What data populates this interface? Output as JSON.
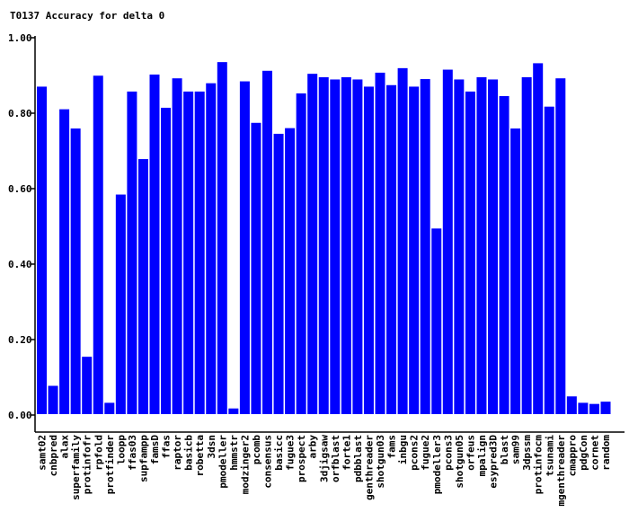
{
  "chart_data": {
    "type": "bar",
    "title": "T0137 Accuracy for delta 0",
    "xlabel": "",
    "ylabel": "",
    "ylim": [
      0,
      1
    ],
    "yticks": [
      "0.00",
      "0.20",
      "0.40",
      "0.60",
      "0.80",
      "1.00"
    ],
    "bar_color": "#0000ff",
    "categories": [
      "samt02",
      "cnbpred",
      "alax",
      "superfamily",
      "protinfofr",
      "rpfold",
      "protfinder",
      "loopp",
      "ffas03",
      "supfampp",
      "famsD",
      "ffas",
      "raptor",
      "basicb",
      "robetta",
      "3dsn",
      "pmodeller",
      "hmmstr",
      "modzinger2",
      "pcomb",
      "consensus",
      "basicc",
      "fugue3",
      "prospect",
      "arby",
      "3djigsaw",
      "orfblast",
      "forte1",
      "pdbblast",
      "genthreader",
      "shotgun03",
      "fams",
      "inbgu",
      "pcons2",
      "fugue2",
      "pmodeller3",
      "pcons3",
      "shotgun05",
      "orfeus",
      "mpalign",
      "esypred3D",
      "blast",
      "sam99",
      "3dpssm",
      "protinfocm",
      "tsunami",
      "mgenthreader",
      "cmappro",
      "pdgCon",
      "cornet",
      "random"
    ],
    "values": [
      0.868,
      0.075,
      0.808,
      0.757,
      0.152,
      0.897,
      0.03,
      0.582,
      0.855,
      0.676,
      0.9,
      0.812,
      0.89,
      0.855,
      0.855,
      0.877,
      0.933,
      0.015,
      0.882,
      0.772,
      0.91,
      0.743,
      0.758,
      0.85,
      0.902,
      0.893,
      0.887,
      0.893,
      0.887,
      0.868,
      0.905,
      0.872,
      0.917,
      0.868,
      0.888,
      0.492,
      0.913,
      0.887,
      0.855,
      0.893,
      0.887,
      0.843,
      0.757,
      0.893,
      0.93,
      0.815,
      0.89,
      0.047,
      0.03,
      0.027,
      0.033
    ]
  }
}
